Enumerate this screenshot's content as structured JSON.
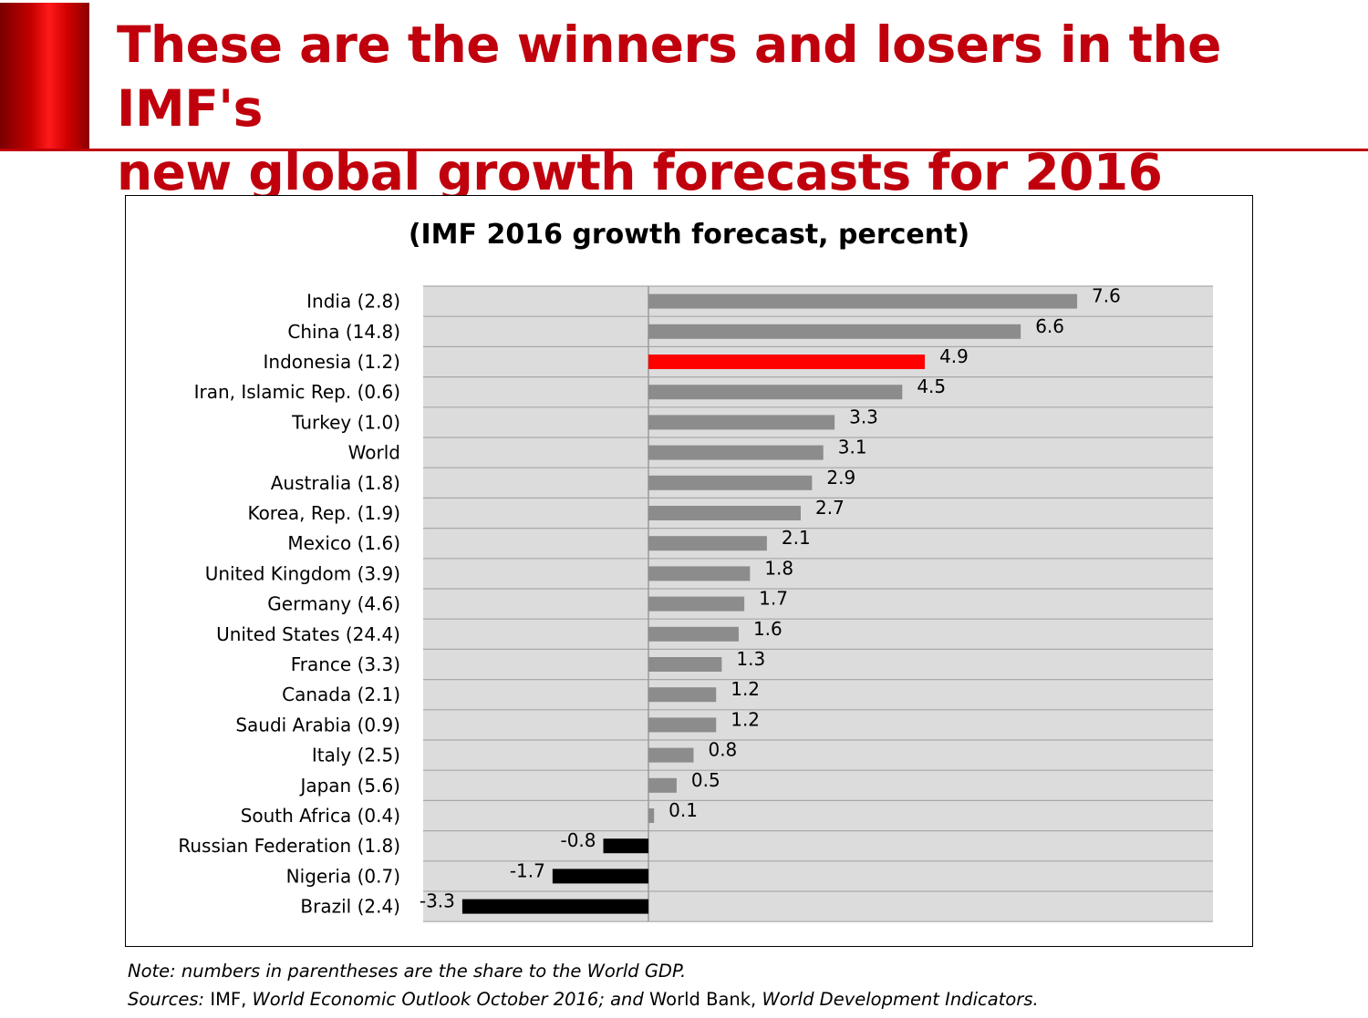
{
  "slide": {
    "title_line1": "These are the winners and losers in the IMF's",
    "title_line2": "new global growth forecasts for 2016"
  },
  "colors": {
    "accent": "#c0000c",
    "bar_positive": "#8c8c8c",
    "bar_highlight": "#ff0000",
    "bar_negative": "#000000",
    "plot_background": "#dcdcdc"
  },
  "chart_data": {
    "type": "bar",
    "orientation": "horizontal",
    "title": "(IMF 2016 growth forecast, percent)",
    "xlabel": "",
    "ylabel": "",
    "xlim": [
      -4.0,
      10.0
    ],
    "grid": true,
    "categories": [
      "India (2.8)",
      "China (14.8)",
      "Indonesia (1.2)",
      "Iran, Islamic Rep. (0.6)",
      "Turkey (1.0)",
      "World",
      "Australia (1.8)",
      "Korea, Rep. (1.9)",
      "Mexico (1.6)",
      "United Kingdom (3.9)",
      "Germany (4.6)",
      "United States (24.4)",
      "France (3.3)",
      "Canada (2.1)",
      "Saudi Arabia (0.9)",
      "Italy (2.5)",
      "Japan (5.6)",
      "South Africa (0.4)",
      "Russian Federation (1.8)",
      "Nigeria (0.7)",
      "Brazil (2.4)"
    ],
    "values": [
      7.6,
      6.6,
      4.9,
      4.5,
      3.3,
      3.1,
      2.9,
      2.7,
      2.1,
      1.8,
      1.7,
      1.6,
      1.3,
      1.2,
      1.2,
      0.8,
      0.5,
      0.1,
      -0.8,
      -1.7,
      -3.3
    ],
    "value_labels": [
      "7.6",
      "6.6",
      "4.9",
      "4.5",
      "3.3",
      "3.1",
      "2.9",
      "2.7",
      "2.1",
      "1.8",
      "1.7",
      "1.6",
      "1.3",
      "1.2",
      "1.2",
      "0.8",
      "0.5",
      "0.1",
      "-0.8",
      "-1.7",
      "-3.3"
    ],
    "highlight": "Indonesia (1.2)"
  },
  "footnotes": {
    "note": "Note: numbers in parentheses are the share to the World GDP.",
    "sources_prefix": "Sources:",
    "sources_imf": " IMF, ",
    "sources_weo": "World Economic Outlook October 2016; and",
    "sources_wb": " World Bank, ",
    "sources_wdi": "World Development Indicators."
  }
}
